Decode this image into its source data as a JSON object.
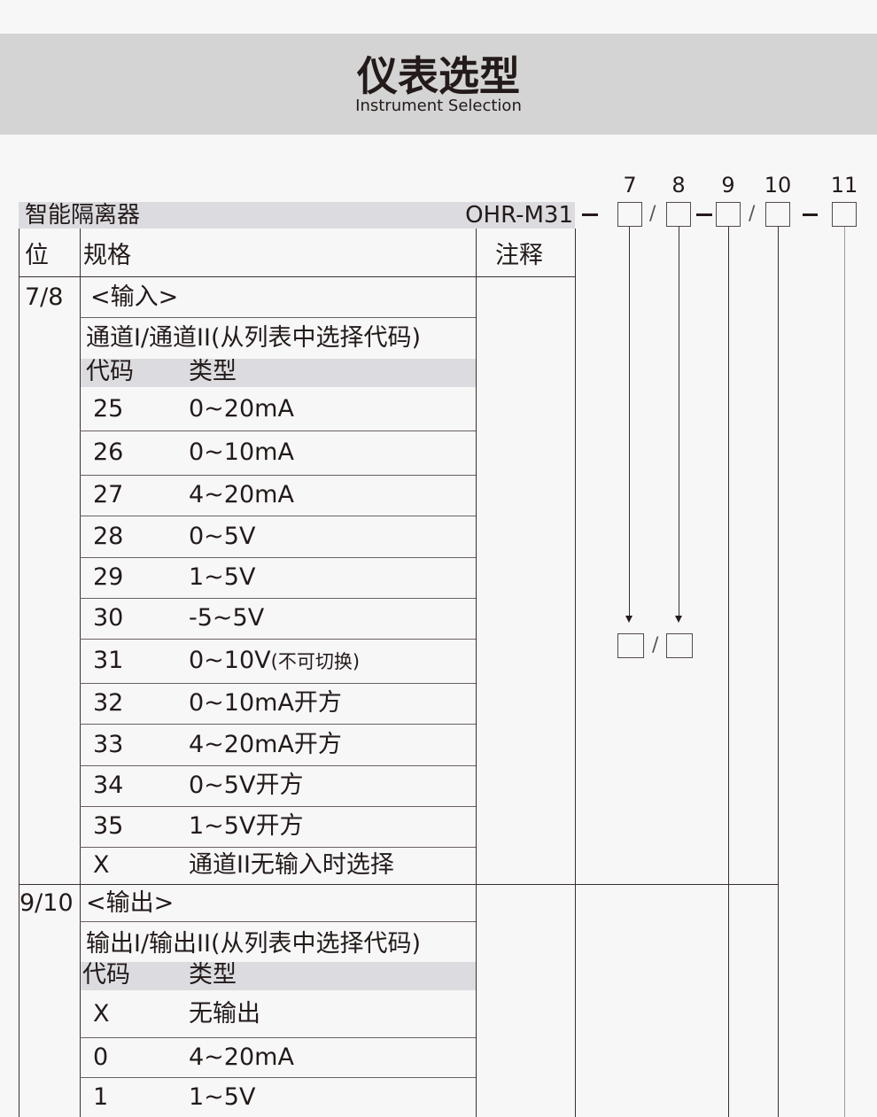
{
  "header": {
    "title": "仪表选型",
    "subtitle": "Instrument Selection"
  },
  "product": {
    "name": "智能隔离器",
    "model": "OHR-M31"
  },
  "positions": [
    "7",
    "8",
    "9",
    "10",
    "11"
  ],
  "separators": {
    "slash": "/"
  },
  "table": {
    "col_position": "位",
    "col_spec": "规格",
    "col_note": "注释",
    "input_section": {
      "position": "7/8",
      "label": "<输入>",
      "desc": "通道I/通道II(从列表中选择代码)",
      "code_header": "代码",
      "type_header": "类型",
      "rows": [
        {
          "code": "25",
          "type": "0~20mA"
        },
        {
          "code": "26",
          "type": "0~10mA"
        },
        {
          "code": "27",
          "type": "4~20mA"
        },
        {
          "code": "28",
          "type": "0~5V"
        },
        {
          "code": "29",
          "type": "1~5V"
        },
        {
          "code": "30",
          "type": "-5~5V"
        },
        {
          "code": "31",
          "type": "0~10V",
          "note": "(不可切换)"
        },
        {
          "code": "32",
          "type": "0~10mA开方"
        },
        {
          "code": "33",
          "type": "4~20mA开方"
        },
        {
          "code": "34",
          "type": "0~5V开方"
        },
        {
          "code": "35",
          "type": "1~5V开方"
        },
        {
          "code": "X",
          "type": "通道II无输入时选择"
        }
      ]
    },
    "output_section": {
      "position": "9/10",
      "label": "<输出>",
      "desc": "输出I/输出II(从列表中选择代码)",
      "code_header": "代码",
      "type_header": "类型",
      "rows": [
        {
          "code": "X",
          "type": "无输出"
        },
        {
          "code": "0",
          "type": "4~20mA"
        },
        {
          "code": "1",
          "type": "1~5V"
        }
      ]
    }
  }
}
